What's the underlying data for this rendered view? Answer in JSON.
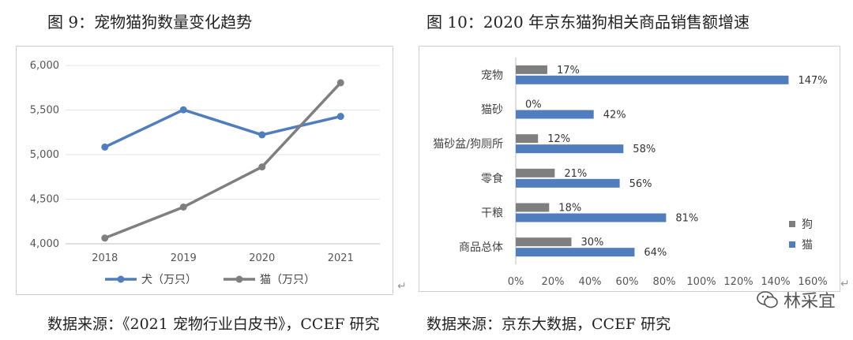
{
  "fig9": {
    "title": "图 9：宠物猫狗数量变化趋势",
    "source": "数据来源：《2021 宠物行业白皮书》，CCEF 研究"
  },
  "fig10": {
    "title": "图 10：2020 年京东猫狗相关商品销售额增速",
    "source": "数据来源：京东大数据，CCEF 研究"
  },
  "watermark": "林采宜",
  "chart_data": [
    {
      "type": "line",
      "x": [
        "2018",
        "2019",
        "2020",
        "2021"
      ],
      "series": [
        {
          "name": "犬（万只）",
          "color": "#4f7dbd",
          "values": [
            5085,
            5503,
            5222,
            5429
          ]
        },
        {
          "name": "猫（万只）",
          "color": "#7f7f7f",
          "values": [
            4064,
            4412,
            4862,
            5806
          ]
        }
      ],
      "ylim": [
        4000,
        6000
      ],
      "yticks": [
        "4,000",
        "4,500",
        "5,000",
        "5,500",
        "6,000"
      ],
      "grid": true,
      "legend": "bottom"
    },
    {
      "type": "bar",
      "orientation": "horizontal",
      "categories": [
        "宠物",
        "猫砂",
        "猫砂盆/狗厕所",
        "零食",
        "干粮",
        "商品总体"
      ],
      "series": [
        {
          "name": "狗",
          "color": "#7f7f7f",
          "values": [
            17,
            0,
            12,
            21,
            18,
            30
          ]
        },
        {
          "name": "猫",
          "color": "#4f7dbd",
          "values": [
            147,
            42,
            58,
            56,
            81,
            64
          ]
        }
      ],
      "xlim": [
        0,
        160
      ],
      "xticks": [
        "0%",
        "20%",
        "40%",
        "60%",
        "80%",
        "100%",
        "120%",
        "140%",
        "160%"
      ],
      "grid": false,
      "legend": "right"
    }
  ]
}
